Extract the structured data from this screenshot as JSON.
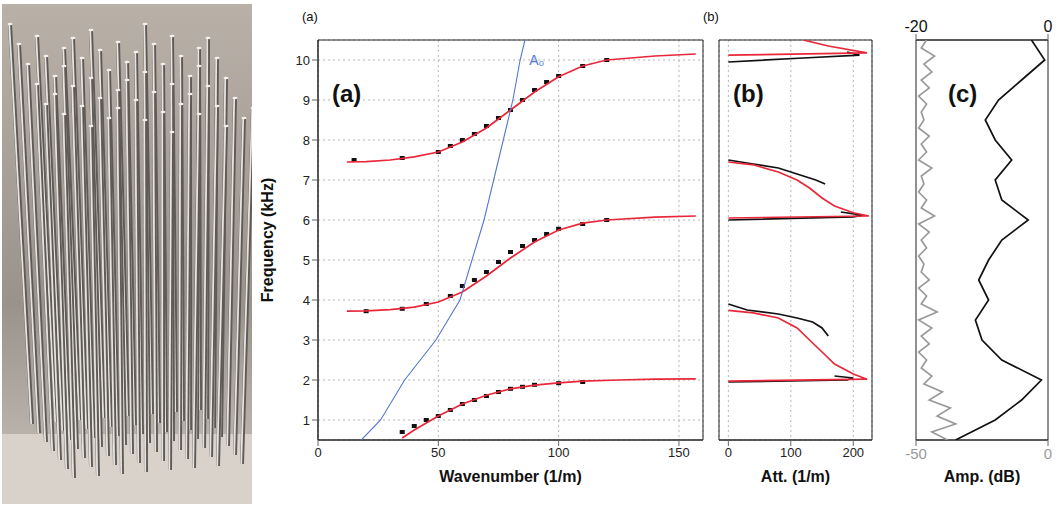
{
  "chart_data": [
    {
      "type": "line",
      "panel_label": "(a)",
      "label": "(a)",
      "x_label": "Wavenumber (1/m)",
      "y_label": "Frequency (kHz)",
      "xlim": [
        0,
        160
      ],
      "xticks": [
        0,
        50,
        100,
        150
      ],
      "ylim": [
        0.5,
        10.5
      ],
      "yticks": [
        1,
        2,
        3,
        4,
        5,
        6,
        7,
        8,
        9,
        10
      ],
      "grid": true,
      "series": [
        {
          "type": "scatter",
          "marker": "square",
          "color": "#111111",
          "x": [
            35,
            40,
            45,
            50,
            55,
            60,
            65,
            70,
            75,
            80,
            85,
            90,
            100,
            110
          ],
          "values": [
            0.7,
            0.85,
            1.0,
            1.1,
            1.25,
            1.4,
            1.5,
            1.6,
            1.7,
            1.78,
            1.83,
            1.88,
            1.92,
            1.95
          ]
        },
        {
          "type": "scatter",
          "marker": "square",
          "color": "#111111",
          "x": [
            20,
            35,
            45,
            55,
            60,
            65,
            70,
            75,
            80,
            85,
            90,
            95,
            100,
            110,
            120
          ],
          "values": [
            3.72,
            3.78,
            3.9,
            4.1,
            4.35,
            4.5,
            4.7,
            4.95,
            5.2,
            5.35,
            5.5,
            5.65,
            5.78,
            5.9,
            6.0
          ]
        },
        {
          "type": "scatter",
          "marker": "square",
          "color": "#111111",
          "x": [
            15,
            35,
            50,
            55,
            60,
            65,
            70,
            75,
            80,
            85,
            90,
            95,
            100,
            110,
            120
          ],
          "values": [
            7.5,
            7.55,
            7.7,
            7.85,
            8.0,
            8.15,
            8.35,
            8.55,
            8.75,
            9.0,
            9.25,
            9.45,
            9.6,
            9.85,
            10.0
          ]
        },
        {
          "type": "line",
          "line_style": "solid",
          "color": "#e8283a",
          "x": [
            35,
            40,
            50,
            60,
            70,
            80,
            90,
            100,
            110,
            125,
            140,
            157
          ],
          "values": [
            0.55,
            0.75,
            1.1,
            1.4,
            1.62,
            1.78,
            1.87,
            1.93,
            1.97,
            2.0,
            2.02,
            2.03
          ]
        },
        {
          "type": "line",
          "line_style": "solid",
          "color": "#e8283a",
          "x": [
            12,
            20,
            30,
            40,
            50,
            60,
            70,
            80,
            90,
            100,
            110,
            120,
            140,
            157
          ],
          "values": [
            3.72,
            3.73,
            3.76,
            3.82,
            3.95,
            4.2,
            4.6,
            5.05,
            5.45,
            5.75,
            5.92,
            6.0,
            6.07,
            6.1
          ]
        },
        {
          "type": "line",
          "line_style": "solid",
          "color": "#e8283a",
          "x": [
            12,
            20,
            30,
            40,
            50,
            60,
            70,
            80,
            90,
            100,
            110,
            120,
            140,
            157
          ],
          "values": [
            7.45,
            7.46,
            7.5,
            7.58,
            7.7,
            7.95,
            8.3,
            8.75,
            9.2,
            9.58,
            9.85,
            10.0,
            10.1,
            10.15
          ]
        },
        {
          "type": "line",
          "line_style": "solid",
          "color": "#5577cc",
          "label": "A₀",
          "x": [
            18,
            26,
            36,
            49,
            59,
            64,
            69,
            73,
            77,
            81,
            84,
            86
          ],
          "values": [
            0.5,
            1,
            2,
            3,
            4,
            5,
            6,
            7,
            8,
            9,
            10,
            10.5
          ]
        }
      ]
    },
    {
      "type": "line",
      "panel_label": "(b)",
      "label": "(b)",
      "x_label": "Att. (1/m)",
      "xlim": [
        -15,
        230
      ],
      "xticks": [
        0,
        100,
        200
      ],
      "ylim": [
        0.5,
        10.5
      ],
      "yticks": [
        1,
        2,
        3,
        4,
        5,
        6,
        7,
        8,
        9,
        10
      ],
      "grid": true,
      "tick_labels": "x",
      "series": [
        {
          "color": "#111111",
          "line_style": "solid",
          "x": [
            0,
            30,
            80,
            110,
            135,
            150,
            160
          ],
          "values": [
            3.9,
            3.75,
            3.65,
            3.55,
            3.45,
            3.3,
            3.1
          ]
        },
        {
          "color": "#111111",
          "line_style": "solid",
          "x": [
            0,
            190,
            200,
            170
          ],
          "values": [
            1.95,
            2.0,
            2.05,
            2.1
          ]
        },
        {
          "color": "#111111",
          "line_style": "solid",
          "x": [
            0,
            40,
            80,
            110,
            140,
            155
          ],
          "values": [
            7.5,
            7.4,
            7.3,
            7.15,
            7.0,
            6.9
          ]
        },
        {
          "color": "#111111",
          "line_style": "solid",
          "x": [
            0,
            200,
            215,
            180
          ],
          "values": [
            6.0,
            6.08,
            6.12,
            6.2
          ]
        },
        {
          "color": "#111111",
          "line_style": "solid",
          "x": [
            0,
            120,
            210,
            190
          ],
          "values": [
            9.95,
            10.05,
            10.12,
            10.2
          ]
        },
        {
          "color": "#e8283a",
          "line_style": "solid",
          "x": [
            0,
            40,
            80,
            110,
            130,
            150,
            170,
            200,
            222,
            0
          ],
          "values": [
            3.74,
            3.68,
            3.55,
            3.3,
            3.0,
            2.7,
            2.4,
            2.15,
            2.02,
            1.97
          ]
        },
        {
          "color": "#e8283a",
          "line_style": "solid",
          "x": [
            0,
            40,
            80,
            110,
            130,
            150,
            170,
            200,
            225,
            0
          ],
          "values": [
            7.45,
            7.38,
            7.2,
            7.0,
            6.8,
            6.55,
            6.35,
            6.18,
            6.1,
            6.05
          ]
        },
        {
          "color": "#e8283a",
          "line_style": "solid",
          "x": [
            0,
            222,
            160,
            120
          ],
          "values": [
            10.12,
            10.18,
            10.35,
            10.5
          ]
        }
      ]
    },
    {
      "type": "line",
      "label": "(c)",
      "x_label": "Amp. (dB)",
      "xlim": [
        -50,
        0
      ],
      "xticks": [
        -50,
        0
      ],
      "x2lim": [
        -20,
        0
      ],
      "x2ticks": [
        -20,
        0
      ],
      "ylim": [
        0.5,
        10.5
      ],
      "grid": false,
      "tick_labels": "x",
      "series": [
        {
          "color": "#9a9a9a",
          "line_style": "solid",
          "x": [
            -38,
            -44,
            -35,
            -42,
            -37,
            -45,
            -40,
            -47,
            -44,
            -48,
            -46,
            -49,
            -45,
            -48,
            -44,
            -49,
            -42,
            -48,
            -46,
            -49,
            -45,
            -48,
            -47,
            -49,
            -46,
            -48,
            -45,
            -49,
            -43,
            -48,
            -46,
            -49,
            -47,
            -48,
            -44,
            -49,
            -46,
            -48,
            -45,
            -49,
            -47,
            -48,
            -46,
            -49,
            -45,
            -48,
            -44,
            -47,
            -43,
            -48,
            -46
          ],
          "values": [
            0.5,
            0.7,
            0.9,
            1.1,
            1.3,
            1.5,
            1.7,
            1.9,
            2.1,
            2.3,
            2.5,
            2.7,
            2.9,
            3.1,
            3.3,
            3.5,
            3.7,
            3.9,
            4.1,
            4.3,
            4.5,
            4.7,
            4.9,
            5.1,
            5.3,
            5.5,
            5.7,
            5.9,
            6.1,
            6.3,
            6.5,
            6.7,
            6.9,
            7.1,
            7.3,
            7.5,
            7.7,
            7.9,
            8.1,
            8.3,
            8.5,
            8.7,
            8.9,
            9.1,
            9.3,
            9.5,
            9.7,
            9.9,
            10.1,
            10.3,
            10.5
          ]
        },
        {
          "color": "#111111",
          "line_style": "solid",
          "axis": "x2",
          "x": [
            -14,
            -8,
            -4,
            -1,
            -7,
            -10,
            -11,
            -9,
            -10.5,
            -9,
            -7,
            -3,
            -7,
            -8,
            -5.5,
            -8,
            -9.5,
            -7.5,
            -4,
            -0.5,
            -2.5
          ],
          "values": [
            0.5,
            1,
            1.5,
            2,
            2.5,
            3,
            3.5,
            4,
            4.5,
            5,
            5.5,
            6,
            6.5,
            7,
            7.5,
            8,
            8.5,
            9,
            9.5,
            10,
            10.5
          ]
        }
      ]
    }
  ]
}
